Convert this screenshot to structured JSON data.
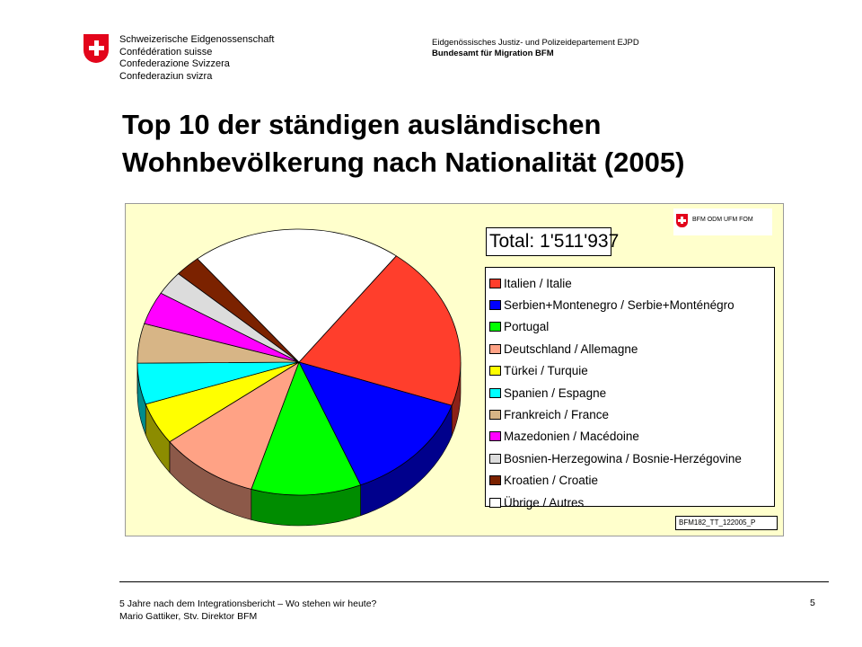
{
  "header": {
    "confederation_lines": [
      "Schweizerische Eidgenossenschaft",
      "Confédération suisse",
      "Confederazione Svizzera",
      "Confederaziun svizra"
    ],
    "department": "Eidgenössisches Justiz- und Polizeidepartement EJPD",
    "office": "Bundesamt für Migration BFM"
  },
  "slide": {
    "title_line1": "Top 10 der ständigen ausländischen",
    "title_line2": "Wohnbevölkerung nach Nationalität (2005)"
  },
  "chart_data": {
    "type": "pie",
    "style": "3d",
    "title": "Total: 1'511'937",
    "legend_position": "right",
    "categories": [
      "Italien / Italie",
      "Serbien+Montenegro / Serbie+Monténégro",
      "Portugal",
      "Deutschland / Allemagne",
      "Türkei / Turquie",
      "Spanien / Espagne",
      "Frankreich / France",
      "Mazedonien / Macédoine",
      "Bosnien-Herzegowina / Bosnie-Herzégovine",
      "Kroatien / Croatie",
      "Übrige / Autres"
    ],
    "values": [
      20.0,
      13.5,
      11.0,
      10.0,
      5.1,
      5.0,
      4.8,
      4.0,
      2.9,
      2.6,
      21.1
    ],
    "colors": [
      "#ff3e2c",
      "#0000ff",
      "#00ff00",
      "#ffa285",
      "#ffff00",
      "#00ffff",
      "#d7b586",
      "#ff00ff",
      "#dcdcdc",
      "#7b2200",
      "#ffffff"
    ],
    "source_code": "BFM182_TT_122005_P"
  },
  "mini_logo": {
    "text": "BFM ODM UFM FOM"
  },
  "footer": {
    "line1": "5 Jahre nach dem Integrationsbericht – Wo stehen wir heute?",
    "line2": "Mario Gattiker, Stv. Direktor BFM",
    "page_number": "5"
  }
}
